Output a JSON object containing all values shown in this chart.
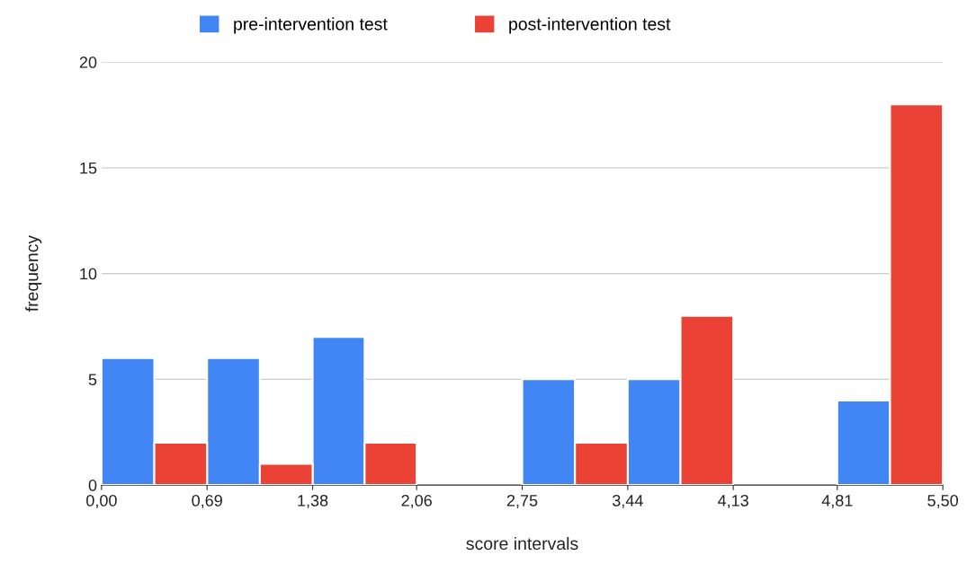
{
  "chart_data": {
    "type": "histogram",
    "xlabel": "score intervals",
    "ylabel": "frequency",
    "bins": [
      0,
      0.69,
      1.38,
      2.06,
      2.75,
      3.44,
      4.13,
      4.81,
      5.5
    ],
    "series": [
      {
        "name": "pre-intervention test",
        "color": "#4285f4",
        "values": [
          6,
          6,
          7,
          0,
          5,
          5,
          0,
          4
        ]
      },
      {
        "name": "post-intervention test",
        "color": "#ea4335",
        "values": [
          2,
          1,
          2,
          0,
          2,
          8,
          0,
          18
        ]
      }
    ],
    "xlim": [
      0,
      5.5
    ],
    "xticks": [
      {
        "value": 0,
        "label": "0,00"
      },
      {
        "value": 0.69,
        "label": "0,69"
      },
      {
        "value": 1.38,
        "label": "1,38"
      },
      {
        "value": 2.06,
        "label": "2,06"
      },
      {
        "value": 2.75,
        "label": "2,75"
      },
      {
        "value": 3.44,
        "label": "3,44"
      },
      {
        "value": 4.13,
        "label": "4,13"
      },
      {
        "value": 4.81,
        "label": "4,81"
      },
      {
        "value": 5.5,
        "label": "5,50"
      }
    ],
    "ylim": [
      0,
      20
    ],
    "yticks": [
      0,
      5,
      10,
      15,
      20
    ],
    "grid": "y",
    "legend": "top"
  }
}
